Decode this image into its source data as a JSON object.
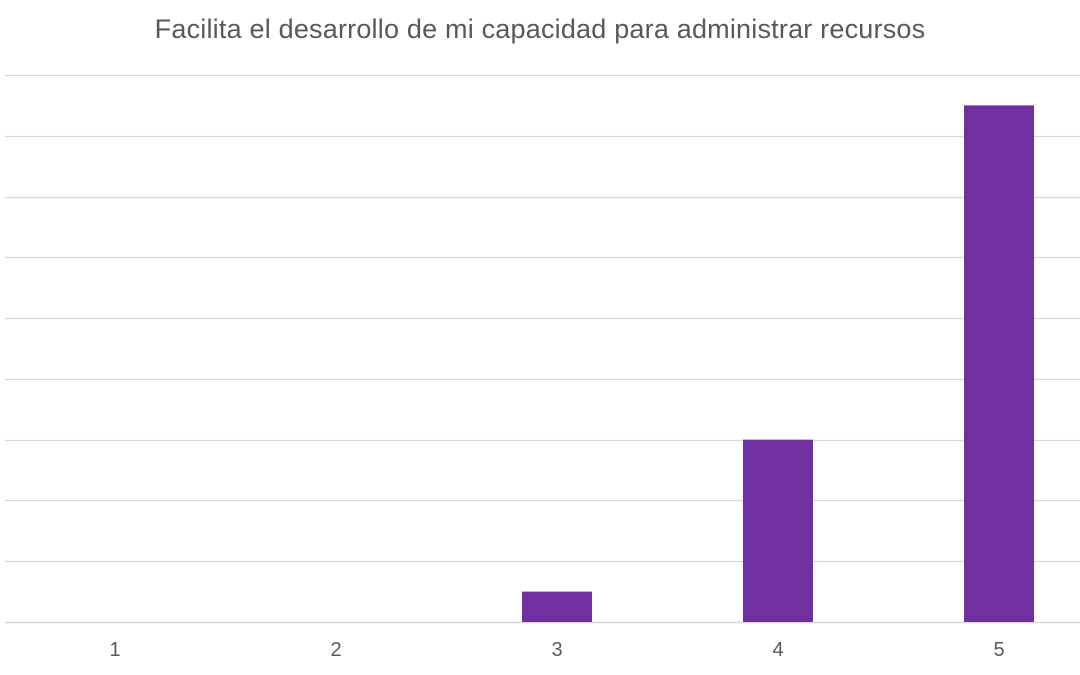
{
  "chart_data": {
    "type": "bar",
    "title": "Facilita el desarrollo de mi capacidad para administrar recursos",
    "xlabel": "",
    "ylabel": "",
    "categories": [
      "1",
      "2",
      "3",
      "4",
      "5"
    ],
    "values": [
      0,
      0,
      0.5,
      3,
      8.5
    ],
    "ylim": [
      0,
      9
    ],
    "grid": true,
    "legend": "none",
    "colors": {
      "bar": "#7030a0",
      "grid": "#d9d9d9",
      "text": "#595959"
    }
  }
}
